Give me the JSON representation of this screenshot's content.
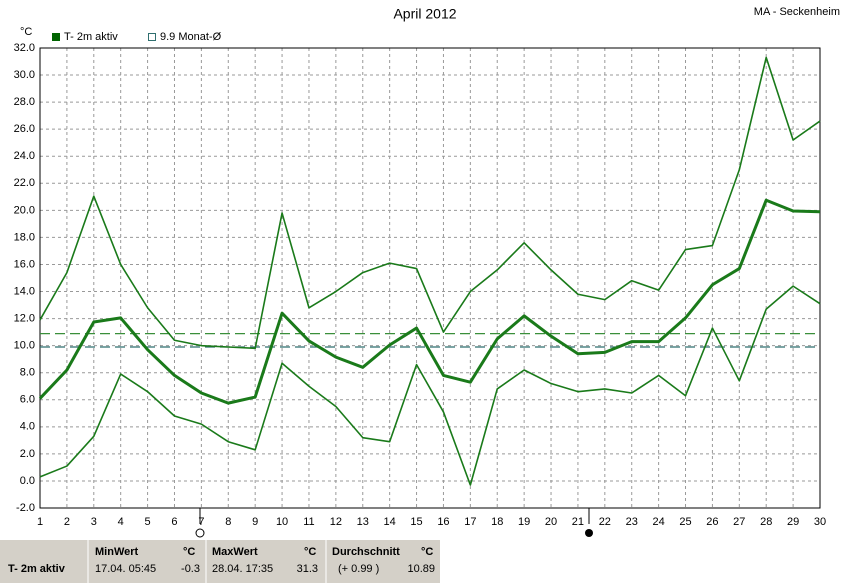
{
  "chart_data": {
    "type": "line",
    "title": "April 2012",
    "station": "MA - Seckenheim",
    "y_unit": "°C",
    "x": [
      1,
      2,
      3,
      4,
      5,
      6,
      7,
      8,
      9,
      10,
      11,
      12,
      13,
      14,
      15,
      16,
      17,
      18,
      19,
      20,
      21,
      22,
      23,
      24,
      25,
      26,
      27,
      28,
      29,
      30
    ],
    "xlim": [
      1,
      30
    ],
    "ylim": [
      -2,
      32
    ],
    "yticks": [
      {
        "value": -2,
        "label": "-2.0"
      },
      {
        "value": 0,
        "label": "0.0"
      },
      {
        "value": 2,
        "label": "2.0"
      },
      {
        "value": 4,
        "label": "4.0"
      },
      {
        "value": 6,
        "label": "6.0"
      },
      {
        "value": 8,
        "label": "8.0"
      },
      {
        "value": 10,
        "label": "10.0"
      },
      {
        "value": 12,
        "label": "12.0"
      },
      {
        "value": 14,
        "label": "14.0"
      },
      {
        "value": 16,
        "label": "16.0"
      },
      {
        "value": 18,
        "label": "18.0"
      },
      {
        "value": 20,
        "label": "20.0"
      },
      {
        "value": 22,
        "label": "22.0"
      },
      {
        "value": 24,
        "label": "24.0"
      },
      {
        "value": 26,
        "label": "26.0"
      },
      {
        "value": 28,
        "label": "28.0"
      },
      {
        "value": 30,
        "label": "30.0"
      },
      {
        "value": 32,
        "label": "32.0"
      }
    ],
    "grid": true,
    "series": [
      {
        "name": "T- 2m aktiv",
        "color": "#1a7a1a",
        "width": 3,
        "values": [
          6.1,
          8.2,
          11.75,
          12.05,
          9.7,
          7.8,
          6.5,
          5.75,
          6.2,
          12.4,
          10.35,
          9.15,
          8.4,
          10.05,
          11.3,
          7.8,
          7.3,
          10.5,
          12.2,
          10.7,
          9.4,
          9.5,
          10.3,
          10.3,
          12.05,
          14.5,
          15.7,
          20.75,
          19.95,
          19.9
        ]
      },
      {
        "color": "#1a7a1a",
        "width": 1.6,
        "values": [
          11.9,
          15.4,
          21.05,
          16.0,
          12.8,
          10.4,
          10.0,
          9.9,
          9.8,
          19.8,
          12.8,
          14.0,
          15.4,
          16.1,
          15.7,
          11.0,
          14.0,
          15.6,
          17.6,
          15.6,
          13.8,
          13.4,
          14.8,
          14.1,
          17.1,
          17.4,
          23.0,
          31.3,
          25.2,
          26.6
        ]
      },
      {
        "color": "#1a7a1a",
        "width": 1.6,
        "values": [
          0.3,
          1.1,
          3.3,
          7.9,
          6.6,
          4.8,
          4.2,
          2.9,
          2.3,
          8.7,
          7.0,
          5.5,
          3.2,
          2.9,
          8.6,
          5.1,
          -0.3,
          6.8,
          8.2,
          7.2,
          6.6,
          6.8,
          6.5,
          7.8,
          6.3,
          11.3,
          7.4,
          12.7,
          14.4,
          13.1
        ]
      }
    ],
    "reference_lines": [
      {
        "name": "9.9 Monat-Ø",
        "value": 9.9,
        "color": "#2f6f6f"
      },
      {
        "value": 10.89,
        "color": "#3a8f3a"
      }
    ]
  },
  "stats": {
    "series_label": "T- 2m aktiv",
    "min": {
      "header": "MinWert",
      "unit": "°C",
      "when": "17.04.  05:45",
      "value": -0.3
    },
    "max": {
      "header": "MaxWert",
      "unit": "°C",
      "when": "28.04.  17:35",
      "value": 31.3
    },
    "avg": {
      "header": "Durchschnitt",
      "unit": "°C",
      "when": "(+ 0.99 )",
      "value": 10.89
    }
  }
}
